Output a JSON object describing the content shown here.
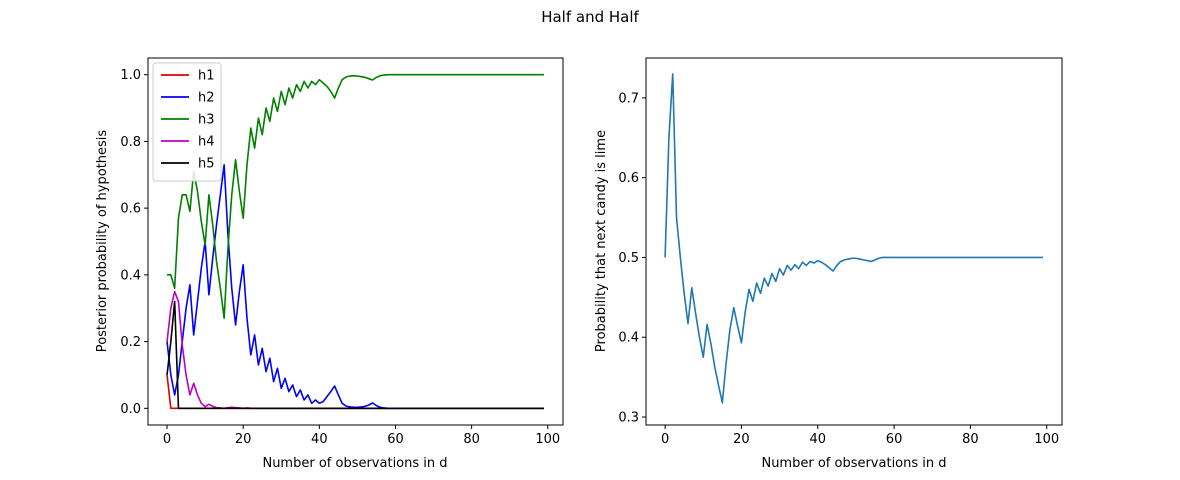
{
  "figure": {
    "title": "Half and Half"
  },
  "chart_data": [
    {
      "type": "line",
      "xlabel": "Number of observations in d",
      "ylabel": "Posterior probability of hypothesis",
      "xlim": [
        -5,
        104
      ],
      "ylim": [
        -0.05,
        1.05
      ],
      "xticks": [
        "0",
        "20",
        "40",
        "60",
        "80",
        "100"
      ],
      "yticks": [
        "0.0",
        "0.2",
        "0.4",
        "0.6",
        "0.8",
        "1.0"
      ],
      "grid": false,
      "legend": "top-left",
      "series": [
        {
          "name": "h1",
          "color": "#e41a1c",
          "stroke": "#e00000",
          "x": [
            0,
            1,
            2,
            99
          ],
          "y": [
            0.1,
            0.0,
            0.0,
            0.0
          ]
        },
        {
          "name": "h2",
          "color": "#0000ff",
          "x": [
            0,
            1,
            2,
            3,
            4,
            5,
            6,
            7,
            8,
            9,
            10,
            11,
            12,
            13,
            14,
            15,
            16,
            17,
            18,
            19,
            20,
            21,
            22,
            23,
            24,
            25,
            26,
            27,
            28,
            29,
            30,
            31,
            32,
            33,
            34,
            35,
            36,
            37,
            38,
            39,
            40,
            41,
            42,
            43,
            44,
            45,
            46,
            47,
            48,
            49,
            50,
            51,
            52,
            53,
            54,
            55,
            56,
            57,
            58,
            59,
            60,
            99
          ],
          "y": [
            0.2,
            0.1,
            0.04,
            0.1,
            0.2,
            0.3,
            0.37,
            0.22,
            0.32,
            0.42,
            0.5,
            0.34,
            0.45,
            0.55,
            0.64,
            0.73,
            0.52,
            0.36,
            0.25,
            0.35,
            0.43,
            0.27,
            0.16,
            0.22,
            0.13,
            0.18,
            0.11,
            0.15,
            0.08,
            0.12,
            0.06,
            0.09,
            0.05,
            0.07,
            0.035,
            0.055,
            0.025,
            0.04,
            0.015,
            0.025,
            0.015,
            0.02,
            0.035,
            0.05,
            0.067,
            0.04,
            0.015,
            0.007,
            0.004,
            0.003,
            0.003,
            0.004,
            0.006,
            0.01,
            0.016,
            0.008,
            0.003,
            0.001,
            0.0,
            0.0,
            0.0,
            0.0
          ]
        },
        {
          "name": "h3",
          "color": "#008000",
          "x": [
            0,
            1,
            2,
            3,
            4,
            5,
            6,
            7,
            8,
            9,
            10,
            11,
            12,
            13,
            14,
            15,
            16,
            17,
            18,
            19,
            20,
            21,
            22,
            23,
            24,
            25,
            26,
            27,
            28,
            29,
            30,
            31,
            32,
            33,
            34,
            35,
            36,
            37,
            38,
            39,
            40,
            41,
            42,
            43,
            44,
            45,
            46,
            47,
            48,
            49,
            50,
            51,
            52,
            53,
            54,
            55,
            56,
            57,
            58,
            59,
            60,
            99
          ],
          "y": [
            0.4,
            0.4,
            0.36,
            0.57,
            0.64,
            0.64,
            0.59,
            0.71,
            0.65,
            0.56,
            0.49,
            0.64,
            0.55,
            0.44,
            0.36,
            0.27,
            0.48,
            0.64,
            0.745,
            0.65,
            0.57,
            0.73,
            0.84,
            0.78,
            0.87,
            0.82,
            0.9,
            0.86,
            0.93,
            0.89,
            0.95,
            0.91,
            0.96,
            0.93,
            0.97,
            0.95,
            0.98,
            0.96,
            0.98,
            0.97,
            0.985,
            0.975,
            0.965,
            0.95,
            0.93,
            0.96,
            0.985,
            0.993,
            0.996,
            0.997,
            0.996,
            0.994,
            0.992,
            0.988,
            0.984,
            0.992,
            0.997,
            0.999,
            1.0,
            1.0,
            1.0,
            1.0
          ]
        },
        {
          "name": "h4",
          "color": "#bf00bf",
          "x": [
            0,
            1,
            2,
            3,
            4,
            5,
            6,
            7,
            8,
            9,
            10,
            11,
            12,
            13,
            14,
            15,
            16,
            17,
            18,
            19,
            20,
            21,
            22,
            99
          ],
          "y": [
            0.2,
            0.3,
            0.35,
            0.32,
            0.19,
            0.1,
            0.04,
            0.075,
            0.04,
            0.015,
            0.005,
            0.012,
            0.006,
            0.002,
            0.001,
            0.0,
            0.002,
            0.003,
            0.002,
            0.001,
            0.0,
            0.001,
            0.0,
            0.0
          ]
        },
        {
          "name": "h5",
          "color": "#000000",
          "x": [
            0,
            1,
            2,
            3,
            4,
            99
          ],
          "y": [
            0.1,
            0.2,
            0.32,
            0.0,
            0.0,
            0.0
          ]
        }
      ]
    },
    {
      "type": "line",
      "xlabel": "Number of observations in d",
      "ylabel": "Probability that next candy is lime",
      "xlim": [
        -5,
        104
      ],
      "ylim": [
        0.29,
        0.75
      ],
      "xticks": [
        "0",
        "20",
        "40",
        "60",
        "80",
        "100"
      ],
      "yticks": [
        "0.3",
        "0.4",
        "0.5",
        "0.6",
        "0.7"
      ],
      "grid": false,
      "series": [
        {
          "color": "#1f77b4",
          "x": [
            0,
            1,
            2,
            3,
            4,
            5,
            6,
            7,
            8,
            9,
            10,
            11,
            12,
            13,
            14,
            15,
            16,
            17,
            18,
            19,
            20,
            21,
            22,
            23,
            24,
            25,
            26,
            27,
            28,
            29,
            30,
            31,
            32,
            33,
            34,
            35,
            36,
            37,
            38,
            39,
            40,
            41,
            42,
            43,
            44,
            45,
            46,
            47,
            48,
            49,
            50,
            51,
            52,
            53,
            54,
            55,
            56,
            57,
            58,
            59,
            60,
            99
          ],
          "y": [
            0.5,
            0.65,
            0.73,
            0.55,
            0.5,
            0.455,
            0.417,
            0.462,
            0.43,
            0.4,
            0.375,
            0.416,
            0.392,
            0.363,
            0.34,
            0.318,
            0.368,
            0.41,
            0.437,
            0.414,
            0.393,
            0.432,
            0.46,
            0.445,
            0.468,
            0.455,
            0.474,
            0.464,
            0.48,
            0.47,
            0.486,
            0.478,
            0.49,
            0.484,
            0.491,
            0.486,
            0.494,
            0.49,
            0.495,
            0.493,
            0.496,
            0.494,
            0.491,
            0.487,
            0.483,
            0.49,
            0.495,
            0.497,
            0.498,
            0.499,
            0.499,
            0.498,
            0.497,
            0.496,
            0.495,
            0.497,
            0.499,
            0.5,
            0.5,
            0.5,
            0.5,
            0.5
          ]
        }
      ]
    }
  ]
}
